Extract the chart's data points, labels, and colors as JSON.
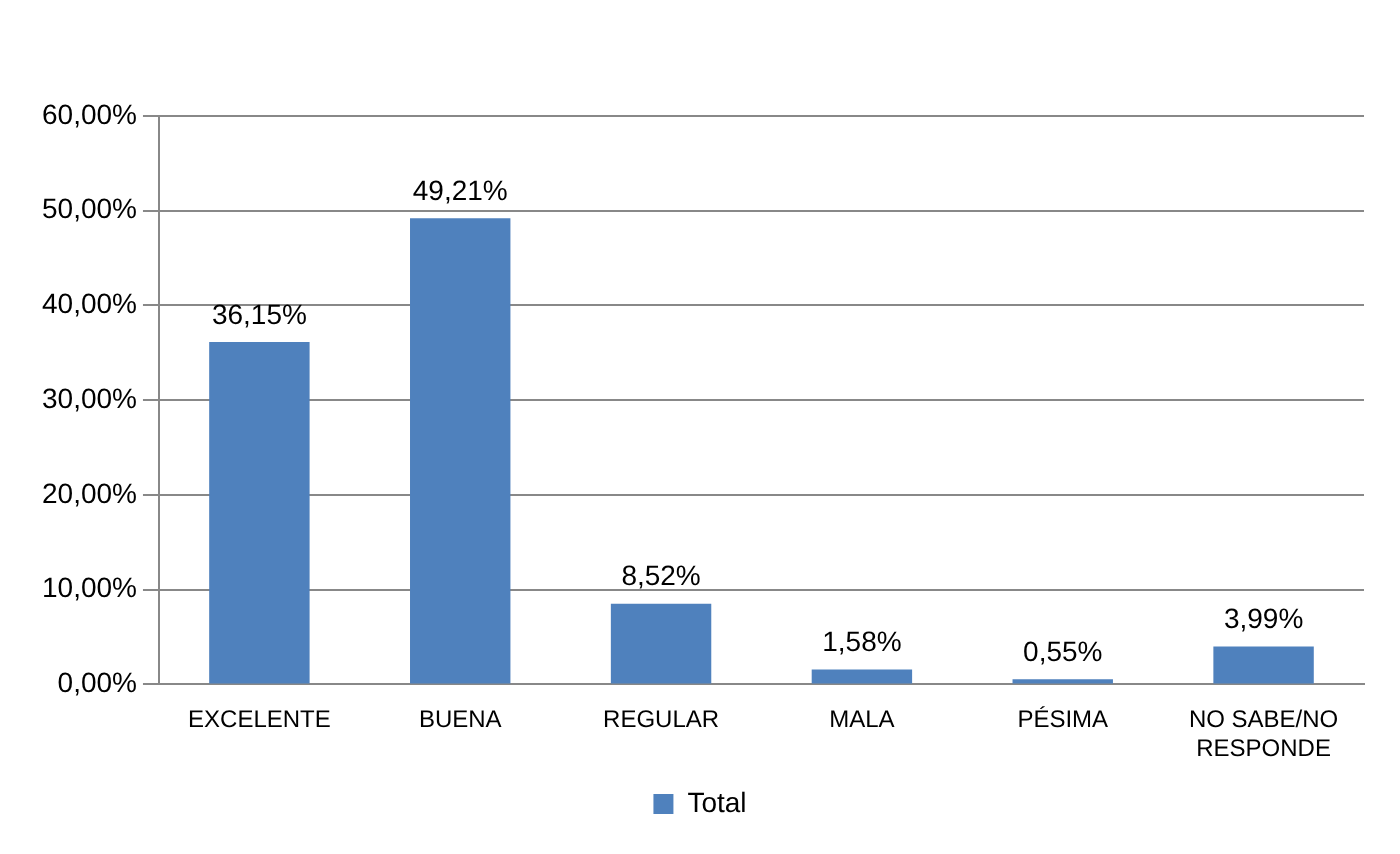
{
  "chart_data": {
    "type": "bar",
    "categories": [
      "EXCELENTE",
      "BUENA",
      "REGULAR",
      "MALA",
      "PÉSIMA",
      "NO SABE/NO RESPONDE"
    ],
    "series": [
      {
        "name": "Total",
        "color": "#4f81bd",
        "values": [
          36.15,
          49.21,
          8.52,
          1.58,
          0.55,
          3.99
        ],
        "value_labels": [
          "36,15%",
          "49,21%",
          "8,52%",
          "1,58%",
          "0,55%",
          "3,99%"
        ]
      }
    ],
    "ylim": [
      0,
      60
    ],
    "yticks": [
      {
        "value": 0,
        "label": "0,00%"
      },
      {
        "value": 10,
        "label": "10,00%"
      },
      {
        "value": 20,
        "label": "20,00%"
      },
      {
        "value": 30,
        "label": "30,00%"
      },
      {
        "value": 40,
        "label": "40,00%"
      },
      {
        "value": 50,
        "label": "50,00%"
      },
      {
        "value": 60,
        "label": "60,00%"
      }
    ],
    "grid": "y",
    "legend": "bottom"
  }
}
